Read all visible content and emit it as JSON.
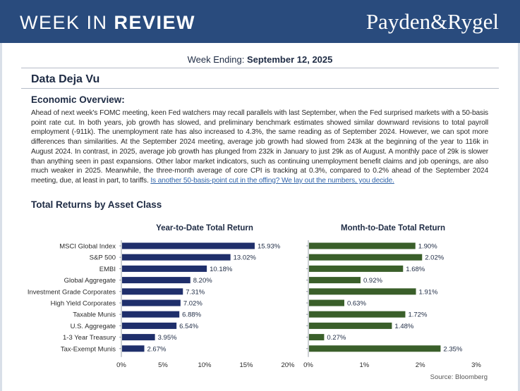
{
  "header": {
    "title_light": "WEEK IN ",
    "title_bold": "REVIEW",
    "brand": "Payden&Rygel"
  },
  "week_label": "Week Ending: ",
  "week_date": "September 12, 2025",
  "article_title": "Data Deja Vu",
  "section_overview": "Economic Overview:",
  "overview_text": "Ahead of next week's FOMC meeting, keen Fed watchers may recall parallels with last September, when the Fed surprised markets with a 50-basis point rate cut. In both years, job growth has slowed, and preliminary benchmark estimates showed similar downward revisions to total payroll employment (-911k). The unemployment rate has also increased to 4.3%, the same reading as of September 2024. However, we can spot more differences than similarities. At the September 2024 meeting, average job growth had slowed from 243k at the beginning of the year to 116k in August 2024. In contrast, in 2025, average job growth has plunged from 232k in January to just 29k as of August. A monthly pace of 29k is slower than anything seen in past expansions. Other labor market indicators, such as continuing unemployment benefit claims and job openings, are also much weaker in 2025. Meanwhile, the three-month average of core CPI is tracking at 0.3%, compared to 0.2% ahead of the September 2024 meeting, due, at least in part, to tariffs. ",
  "overview_link": "Is another 50-basis-point cut in the offing? We lay out the numbers, you decide.",
  "section_returns": "Total Returns by Asset Class",
  "source": "Source: Bloomberg",
  "colors": {
    "navy": "#1f2f6b",
    "green": "#3a5f2a",
    "header": "#294b7d"
  },
  "chart_data": [
    {
      "type": "bar",
      "orientation": "horizontal",
      "title": "Year-to-Date Total Return",
      "categories": [
        "MSCI Global Index",
        "S&P 500",
        "EMBI",
        "Global Aggregate",
        "Investment Grade Corporates",
        "High Yield Corporates",
        "Taxable Munis",
        "U.S. Aggregate",
        "1-3 Year Treasury",
        "Tax-Exempt Munis"
      ],
      "values": [
        15.93,
        13.02,
        10.18,
        8.2,
        7.31,
        7.02,
        6.88,
        6.54,
        3.95,
        2.67
      ],
      "data_labels": [
        "15.93%",
        "13.02%",
        "10.18%",
        "8.20%",
        "7.31%",
        "7.02%",
        "6.88%",
        "6.54%",
        "3.95%",
        "2.67%"
      ],
      "xlim": [
        0,
        20
      ],
      "ticks": [
        0,
        5,
        10,
        15,
        20
      ],
      "tick_labels": [
        "0%",
        "5%",
        "10%",
        "15%",
        "20%"
      ],
      "color": "#1f2f6b"
    },
    {
      "type": "bar",
      "orientation": "horizontal",
      "title": "Month-to-Date Total Return",
      "categories": [
        "MSCI Global Index",
        "S&P 500",
        "EMBI",
        "Global Aggregate",
        "Investment Grade Corporates",
        "High Yield Corporates",
        "Taxable Munis",
        "U.S. Aggregate",
        "1-3 Year Treasury",
        "Tax-Exempt Munis"
      ],
      "values": [
        1.9,
        2.02,
        1.68,
        0.92,
        1.91,
        0.63,
        1.72,
        1.48,
        0.27,
        2.35
      ],
      "data_labels": [
        "1.90%",
        "2.02%",
        "1.68%",
        "0.92%",
        "1.91%",
        "0.63%",
        "1.72%",
        "1.48%",
        "0.27%",
        "2.35%"
      ],
      "xlim": [
        0,
        3
      ],
      "ticks": [
        0,
        1,
        2,
        3
      ],
      "tick_labels": [
        "0%",
        "1%",
        "2%",
        "3%"
      ],
      "color": "#3a5f2a"
    }
  ]
}
